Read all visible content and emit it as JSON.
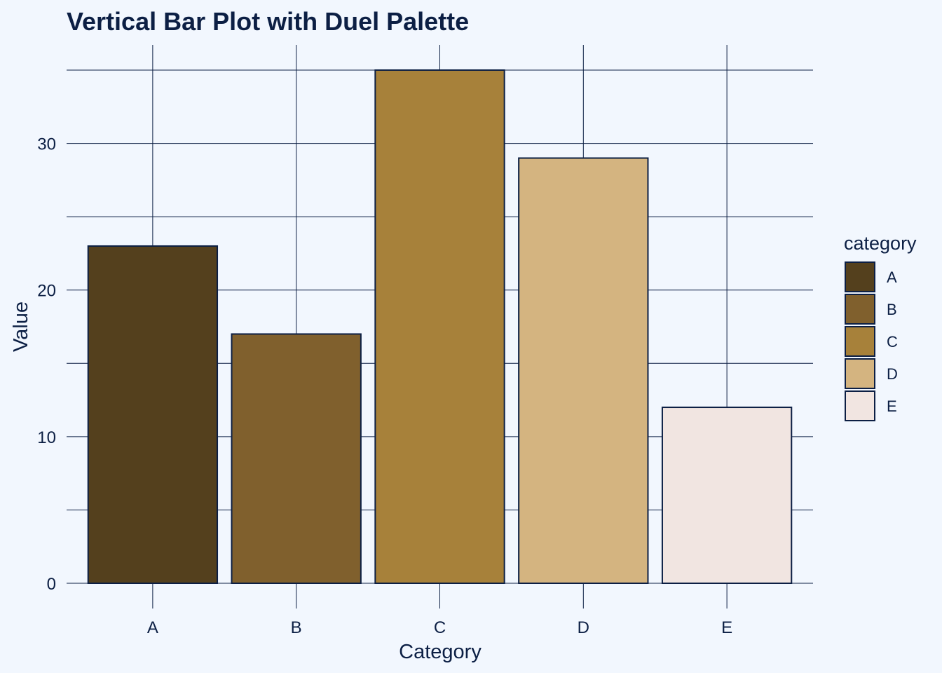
{
  "chart_data": {
    "type": "bar",
    "title": "Vertical Bar Plot with Duel Palette",
    "xlabel": "Category",
    "ylabel": "Value",
    "categories": [
      "A",
      "B",
      "C",
      "D",
      "E"
    ],
    "values": [
      23,
      17,
      35,
      29,
      12
    ],
    "colors": [
      "#54401d",
      "#80602d",
      "#a7813a",
      "#d4b480",
      "#f1e5e1"
    ],
    "ylim": [
      0,
      35
    ],
    "yticks": [
      0,
      10,
      20,
      30
    ],
    "grid": true,
    "legend": {
      "title": "category",
      "position": "right",
      "entries": [
        "A",
        "B",
        "C",
        "D",
        "E"
      ]
    }
  }
}
